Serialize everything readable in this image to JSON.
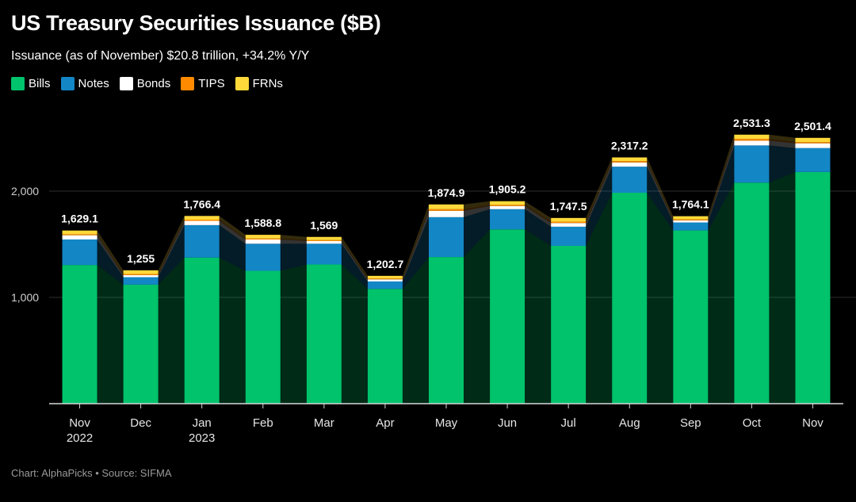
{
  "title": "US Treasury Securities Issuance ($B)",
  "subtitle": "Issuance (as of November) $20.8 trillion, +34.2% Y/Y",
  "footer": "Chart: AlphaPicks • Source: SIFMA",
  "chart_data": {
    "type": "bar",
    "stacked": true,
    "categories": [
      "Nov",
      "Dec",
      "Jan",
      "Feb",
      "Mar",
      "Apr",
      "May",
      "Jun",
      "Jul",
      "Aug",
      "Sep",
      "Oct",
      "Nov"
    ],
    "year_labels": [
      "2022",
      "",
      "2023",
      "",
      "",
      "",
      "",
      "",
      "",
      "",
      "",
      "",
      ""
    ],
    "totals": [
      1629.1,
      1255,
      1766.4,
      1588.8,
      1569,
      1202.7,
      1874.9,
      1905.2,
      1747.5,
      2317.2,
      1764.1,
      2531.3,
      2501.4
    ],
    "total_labels": [
      "1,629.1",
      "1,255",
      "1,766.4",
      "1,588.8",
      "1,569",
      "1,202.7",
      "1,874.9",
      "1,905.2",
      "1,747.5",
      "2,317.2",
      "1,764.1",
      "2,531.3",
      "2,501.4"
    ],
    "series": [
      {
        "name": "Bills",
        "color": "#00c36b",
        "values": [
          1305,
          1120,
          1375,
          1250,
          1310,
          1080,
          1380,
          1640,
          1485,
          1985,
          1630,
          2080,
          2180
        ]
      },
      {
        "name": "Notes",
        "color": "#1386c6",
        "values": [
          240,
          70,
          305,
          255,
          195,
          70,
          375,
          190,
          180,
          245,
          75,
          350,
          225
        ]
      },
      {
        "name": "Bonds",
        "color": "#ffffff",
        "values": [
          40,
          20,
          40,
          40,
          25,
          20,
          60,
          30,
          35,
          40,
          20,
          45,
          45
        ]
      },
      {
        "name": "TIPS",
        "color": "#ff8a00",
        "values": [
          9.1,
          10,
          11.4,
          8.8,
          9,
          7.7,
          14.9,
          10.2,
          12.5,
          12.2,
          9.1,
          16.3,
          11.4
        ]
      },
      {
        "name": "FRNs",
        "color": "#ffd93a",
        "values": [
          35,
          35,
          35,
          35,
          30,
          25,
          45,
          35,
          35,
          35,
          30,
          40,
          40
        ]
      }
    ],
    "yticks": [
      1000,
      2000
    ],
    "ytick_labels": [
      "1,000",
      "2,000"
    ],
    "ylim": [
      0,
      2650
    ],
    "grid": true,
    "legend_position": "top-left"
  }
}
